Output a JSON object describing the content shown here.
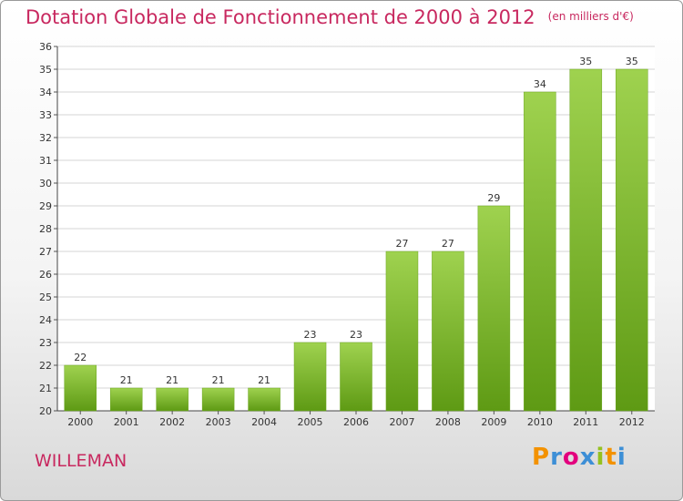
{
  "header": {
    "title": "Dotation Globale de Fonctionnement de 2000 à 2012",
    "subtitle": "(en milliers d'€)"
  },
  "footer": {
    "commune": "WILLEMAN",
    "logo": "Proxiti"
  },
  "colors": {
    "title": "#c8285f",
    "bar_light": "#9fd24f",
    "bar_dark": "#5e9a14",
    "logo_letters": [
      "#f39200",
      "#3d8fd6",
      "#e3007e",
      "#3d8fd6",
      "#95c11f",
      "#f39200",
      "#3d8fd6"
    ]
  },
  "chart_data": {
    "type": "bar",
    "categories": [
      "2000",
      "2001",
      "2002",
      "2003",
      "2004",
      "2005",
      "2006",
      "2007",
      "2008",
      "2009",
      "2010",
      "2011",
      "2012"
    ],
    "values": [
      22,
      21,
      21,
      21,
      21,
      23,
      23,
      27,
      27,
      29,
      34,
      35,
      35
    ],
    "ylim": [
      20,
      36
    ],
    "yticks": [
      20,
      21,
      22,
      23,
      24,
      25,
      26,
      27,
      28,
      29,
      30,
      31,
      32,
      33,
      34,
      35,
      36
    ],
    "grid": true,
    "xlabel": "",
    "ylabel": ""
  }
}
